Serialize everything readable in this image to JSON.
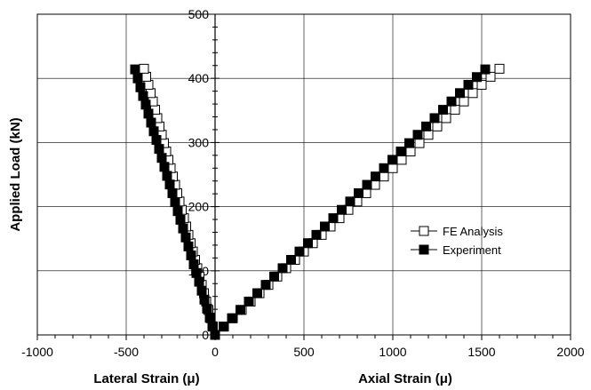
{
  "chart_data": {
    "type": "scatter",
    "title": "",
    "xlabel_left": "Lateral Strain (μ)",
    "xlabel_right": "Axial Strain (μ)",
    "ylabel": "Applied Load (kN)",
    "xlim": [
      -1000,
      2000
    ],
    "ylim": [
      0,
      500
    ],
    "x_ticks": [
      "-1000",
      "-500",
      "0",
      "500",
      "1000",
      "1500",
      "2000"
    ],
    "y_ticks": [
      "0",
      "100",
      "200",
      "300",
      "400",
      "500"
    ],
    "grid": true,
    "legend_position": "center-right",
    "series": [
      {
        "name": "FE Analysis",
        "marker": "open-square",
        "color": "#000000",
        "branches": [
          {
            "side": "lateral",
            "x": [
              0,
              -25,
              -50,
              -75,
              -100,
              -125,
              -150,
              -175,
              -200,
              -225,
              -250,
              -275,
              -300,
              -325,
              -350,
              -375,
              -400
            ],
            "y": [
              0,
              26,
              52,
              78,
              104,
              130,
              156,
              182,
              208,
              234,
              260,
              286,
              312,
              338,
              364,
              390,
              415
            ]
          },
          {
            "side": "axial",
            "x": [
              0,
              100,
              200,
              300,
              400,
              500,
              600,
              700,
              800,
              900,
              1000,
              1100,
              1200,
              1300,
              1400,
              1500,
              1600
            ],
            "y": [
              0,
              26,
              52,
              78,
              104,
              130,
              156,
              182,
              208,
              234,
              260,
              286,
              312,
              338,
              364,
              390,
              415
            ]
          }
        ]
      },
      {
        "name": "Experiment",
        "marker": "filled-square",
        "color": "#000000",
        "branches": [
          {
            "side": "lateral",
            "x": [
              0,
              -30,
              -60,
              -90,
              -120,
              -150,
              -180,
              -210,
              -240,
              -270,
              -300,
              -330,
              -360,
              -390,
              -420,
              -450
            ],
            "y": [
              0,
              27,
              55,
              83,
              110,
              138,
              166,
              193,
              221,
              248,
              276,
              304,
              331,
              359,
              386,
              414
            ]
          },
          {
            "side": "axial",
            "x": [
              0,
              95,
              190,
              285,
              380,
              475,
              570,
              665,
              760,
              855,
              950,
              1045,
              1140,
              1235,
              1330,
              1425,
              1520
            ],
            "y": [
              0,
              26,
              52,
              78,
              104,
              130,
              156,
              182,
              208,
              234,
              260,
              286,
              312,
              338,
              364,
              390,
              414
            ]
          }
        ]
      }
    ]
  }
}
